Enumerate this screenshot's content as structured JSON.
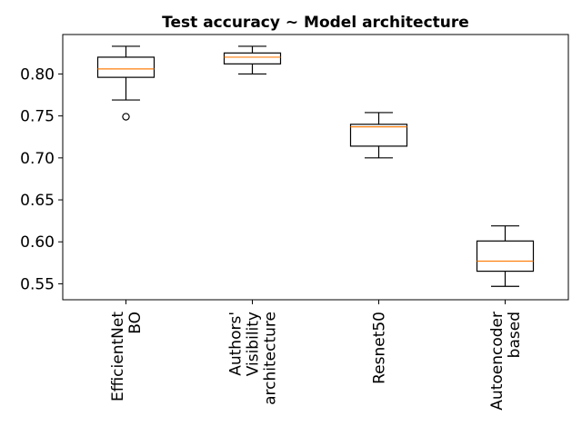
{
  "chart_data": {
    "type": "boxplot",
    "title": "Test accuracy ~ Model architecture",
    "xlabel": "",
    "ylabel": "",
    "ylim": [
      0.531,
      0.847
    ],
    "yticks": [
      0.55,
      0.6,
      0.65,
      0.7,
      0.75,
      0.8
    ],
    "ytick_labels": [
      "0.55",
      "0.60",
      "0.65",
      "0.70",
      "0.75",
      "0.80"
    ],
    "categories": [
      [
        "EfficientNet",
        "BO"
      ],
      [
        "Authors'",
        "Visibility",
        "architecture"
      ],
      [
        "Resnet50"
      ],
      [
        "Autoencoder",
        "based"
      ]
    ],
    "boxes": [
      {
        "whisker_low": 0.769,
        "q1": 0.796,
        "median": 0.806,
        "q3": 0.82,
        "whisker_high": 0.833,
        "outliers": [
          0.749
        ]
      },
      {
        "whisker_low": 0.8,
        "q1": 0.812,
        "median": 0.82,
        "q3": 0.825,
        "whisker_high": 0.833,
        "outliers": []
      },
      {
        "whisker_low": 0.7,
        "q1": 0.714,
        "median": 0.737,
        "q3": 0.74,
        "whisker_high": 0.754,
        "outliers": []
      },
      {
        "whisker_low": 0.547,
        "q1": 0.565,
        "median": 0.577,
        "q3": 0.601,
        "whisker_high": 0.619,
        "outliers": []
      }
    ],
    "grid": false,
    "legend": "none",
    "colors": {
      "box": "#000000",
      "median": "#ff7f0e"
    }
  }
}
